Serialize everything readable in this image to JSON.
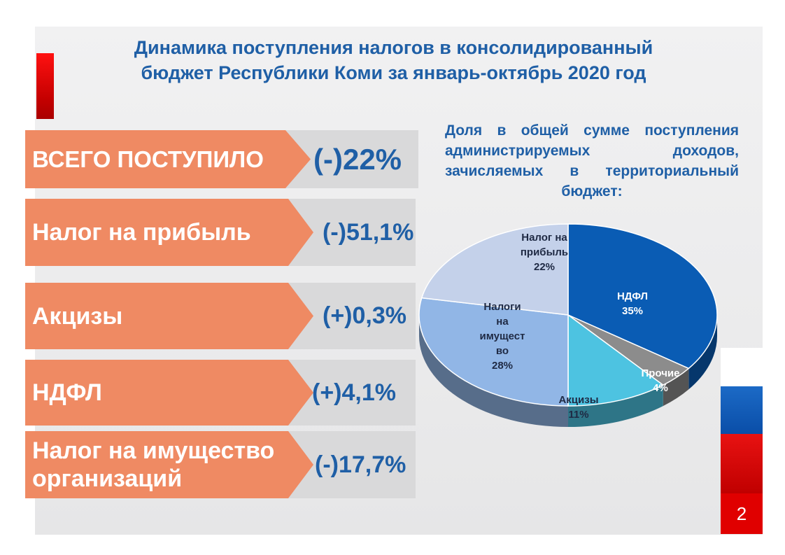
{
  "title": {
    "line1": "Динамика поступления налогов в консолидированный",
    "line2": "бюджет Республики Коми за январь-октябрь 2020 год"
  },
  "rows": [
    {
      "label": "ВСЕГО ПОСТУПИЛО",
      "value": "(-)22%"
    },
    {
      "label": "Налог на прибыль",
      "value": "(-)51,1%"
    },
    {
      "label": "Акцизы",
      "value": "(+)0,3%"
    },
    {
      "label": "НДФЛ",
      "value": "(+)4,1%"
    },
    {
      "label_line1": "Налог на имущество",
      "label_line2": "организаций",
      "value": "(-)17,7%"
    }
  ],
  "pie_caption": "Доля в общей сумме поступления администрируемых доходов, зачисляемых в территориальный бюджет:",
  "chart_data": {
    "type": "pie",
    "slices": [
      {
        "label": "НДФЛ",
        "value": 35,
        "value_label": "35%",
        "color": "#0a5cb4"
      },
      {
        "label": "Прочие",
        "value": 4,
        "value_label": "4%",
        "color": "#8c8c8c"
      },
      {
        "label": "Акцизы",
        "value": 11,
        "value_label": "11%",
        "color": "#4dc3e1"
      },
      {
        "label": "Налоги на имуществ во",
        "value": 28,
        "value_label": "28%",
        "color": "#91b6e6"
      },
      {
        "label": "Налог на прибыль",
        "value": 22,
        "value_label": "22%",
        "color": "#c4d1ea"
      }
    ]
  },
  "page_number": "2",
  "colors": {
    "title": "#1f5fa6",
    "arrow": "#ef8a63",
    "accent_red": "#e00000"
  }
}
